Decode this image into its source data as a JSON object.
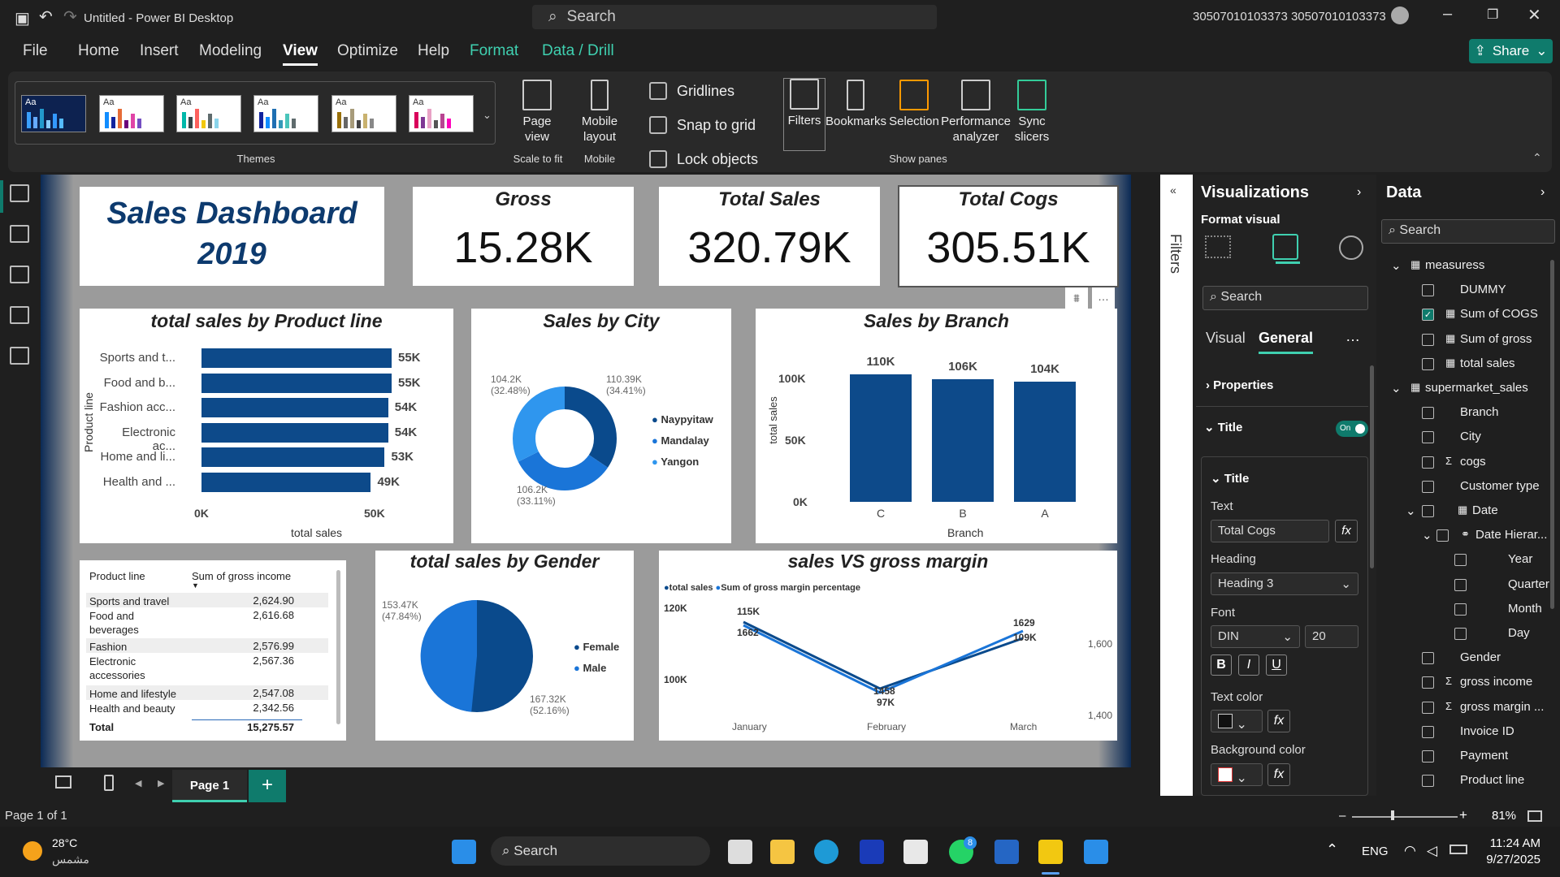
{
  "window": {
    "title": "Untitled - Power BI Desktop",
    "search": "Search",
    "user": "30507010103373 30507010103373"
  },
  "menu": {
    "file": "File",
    "home": "Home",
    "insert": "Insert",
    "modeling": "Modeling",
    "view": "View",
    "optimize": "Optimize",
    "help": "Help",
    "format": "Format",
    "datadrill": "Data / Drill",
    "share": "Share"
  },
  "ribbon": {
    "themes_label": "Themes",
    "theme_aa": "Aa",
    "page_view": "Page view",
    "scale_to_fit": "Scale to fit",
    "mobile_layout": "Mobile layout",
    "mobile": "Mobile",
    "gridlines": "Gridlines",
    "snap": "Snap to grid",
    "lock": "Lock objects",
    "filters": "Filters",
    "bookmarks": "Bookmarks",
    "selection": "Selection",
    "performance": "Performance analyzer",
    "sync": "Sync slicers",
    "show_panes": "Show panes"
  },
  "dashboard": {
    "title1": "Sales Dashboard",
    "title2": "2019",
    "kpis": [
      {
        "label": "Gross",
        "value": "15.28K"
      },
      {
        "label": "Total Sales",
        "value": "320.79K"
      },
      {
        "label": "Total Cogs",
        "value": "305.51K"
      }
    ],
    "product_chart": {
      "title": "total sales by Product line",
      "ylabel": "Product line",
      "xlabel": "total sales",
      "ticks": [
        "0K",
        "50K"
      ],
      "labels": [
        "Sports and t...",
        "Food and b...",
        "Fashion acc...",
        "Electronic ac...",
        "Home and li...",
        "Health and ..."
      ],
      "values": [
        "55K",
        "55K",
        "54K",
        "54K",
        "53K",
        "49K"
      ]
    },
    "city_chart": {
      "title": "Sales by City",
      "legend": [
        "Naypyitaw",
        "Mandalay",
        "Yangon"
      ],
      "l1": "104.2K",
      "l1p": "(32.48%)",
      "l2": "110.39K",
      "l2p": "(34.41%)",
      "l3": "106.2K",
      "l3p": "(33.11%)"
    },
    "branch_chart": {
      "title": "Sales by Branch",
      "ylabel": "total sales",
      "xlabel": "Branch",
      "yticks": [
        "100K",
        "50K",
        "0K"
      ],
      "cats": [
        "C",
        "B",
        "A"
      ],
      "vals": [
        "110K",
        "106K",
        "104K"
      ]
    },
    "table": {
      "h1": "Product line",
      "h2": "Sum of gross income",
      "rows": [
        [
          "Sports and travel",
          "2,624.90"
        ],
        [
          "Food and beverages",
          "2,616.68"
        ],
        [
          "Fashion accessories",
          "2,576.99"
        ],
        [
          "Electronic accessories",
          "2,567.36"
        ],
        [
          "Home and lifestyle",
          "2,547.08"
        ],
        [
          "Health and beauty",
          "2,342.56"
        ]
      ],
      "total_label": "Total",
      "total": "15,275.57"
    },
    "gender_chart": {
      "title": "total sales by Gender",
      "legend": [
        "Female",
        "Male"
      ],
      "l1": "153.47K",
      "l1p": "(47.84%)",
      "l2": "167.32K",
      "l2p": "(52.16%)"
    },
    "line_chart": {
      "title": "sales VS gross margin",
      "legend": [
        "total sales",
        "Sum of gross margin percentage"
      ],
      "yl": [
        "120K",
        "100K"
      ],
      "yr": [
        "1,600",
        "1,400"
      ],
      "months": [
        "January",
        "February",
        "March"
      ],
      "labels": [
        "115K",
        "1662",
        "1458",
        "97K",
        "1629",
        "109K"
      ]
    }
  },
  "chart_data": [
    {
      "type": "bar",
      "title": "total sales by Product line",
      "categories": [
        "Sports and t...",
        "Food and b...",
        "Fashion acc...",
        "Electronic ac...",
        "Home and li...",
        "Health and ..."
      ],
      "values": [
        55,
        55,
        54,
        54,
        53,
        49
      ],
      "xlabel": "total sales",
      "ylabel": "Product line"
    },
    {
      "type": "pie",
      "title": "Sales by City",
      "categories": [
        "Naypyitaw",
        "Mandalay",
        "Yangon"
      ],
      "values": [
        110.39,
        106.2,
        104.2
      ]
    },
    {
      "type": "bar",
      "title": "Sales by Branch",
      "categories": [
        "C",
        "B",
        "A"
      ],
      "values": [
        110,
        106,
        104
      ],
      "xlabel": "Branch",
      "ylabel": "total sales"
    },
    {
      "type": "pie",
      "title": "total sales by Gender",
      "categories": [
        "Female",
        "Male"
      ],
      "values": [
        167.32,
        153.47
      ]
    },
    {
      "type": "line",
      "title": "sales VS gross margin",
      "categories": [
        "January",
        "February",
        "March"
      ],
      "series": [
        {
          "name": "total sales",
          "values": [
            115,
            97,
            109
          ]
        },
        {
          "name": "Sum of gross margin percentage",
          "values": [
            1662,
            1458,
            1629
          ]
        }
      ]
    }
  ],
  "viz_pane": {
    "title": "Visualizations",
    "format_visual": "Format visual",
    "search": "Search",
    "tab_visual": "Visual",
    "tab_general": "General",
    "properties": "Properties",
    "title_section": "Title",
    "on": "On",
    "title_sub": "Title",
    "text_label": "Text",
    "text_value": "Total Cogs",
    "heading_label": "Heading",
    "heading_value": "Heading 3",
    "font_label": "Font",
    "font_value": "DIN",
    "font_size": "20",
    "text_color": "Text color",
    "bg_color": "Background color",
    "filters": "Filters"
  },
  "data_pane": {
    "title": "Data",
    "search": "Search",
    "fields": [
      "measuress",
      "DUMMY",
      "Sum of COGS",
      "Sum of gross",
      "total sales",
      "supermarket_sales",
      "Branch",
      "City",
      "cogs",
      "Customer type",
      "Date",
      "Date Hierar...",
      "Year",
      "Quarter",
      "Month",
      "Day",
      "Gender",
      "gross income",
      "gross margin ...",
      "Invoice ID",
      "Payment",
      "Product line"
    ]
  },
  "pages": {
    "page1": "Page 1",
    "status": "Page 1 of 1",
    "zoom": "81%"
  },
  "taskbar": {
    "temp": "28°C",
    "weather": "مشمس",
    "search": "Search",
    "lang": "ENG",
    "time": "11:24 AM",
    "date": "9/27/2025",
    "badge": "8"
  }
}
